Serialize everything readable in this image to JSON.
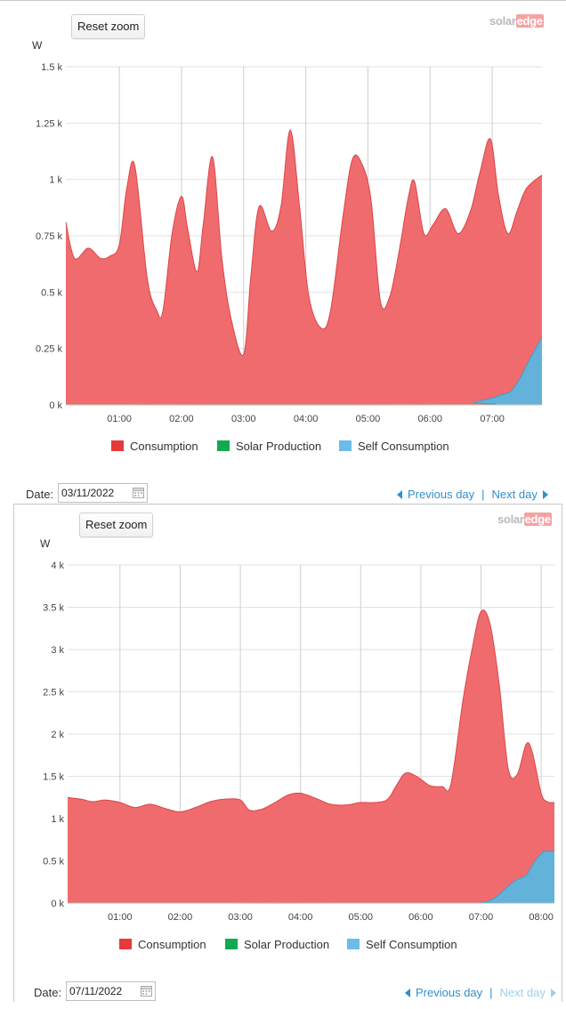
{
  "colors": {
    "consumption": "#f06b6d",
    "consumption_line": "#d9474a",
    "solar": "#17a84c",
    "self": "#5bb6e0",
    "legend_consumption": "#e83a3a",
    "legend_solar": "#13a94f",
    "legend_self": "#6bbce8",
    "grid": "#e2e2e2",
    "link": "#2f8fcd"
  },
  "logo": {
    "part1": "solar",
    "part2": "edge"
  },
  "chart_data": [
    {
      "type": "area",
      "ylabel": "W",
      "ylim": [
        0,
        1500
      ],
      "yticks": [
        0,
        250,
        500,
        750,
        1000,
        1250,
        1500
      ],
      "ytick_labels": [
        "0 k",
        "0.25 k",
        "0.5 k",
        "0.75 k",
        "1 k",
        "1.25 k",
        "1.5 k"
      ],
      "xlim": [
        0.14,
        7.8
      ],
      "xticks": [
        1,
        2,
        3,
        4,
        5,
        6,
        7
      ],
      "xtick_labels": [
        "01:00",
        "02:00",
        "03:00",
        "04:00",
        "05:00",
        "06:00",
        "07:00"
      ],
      "grid": true,
      "legend_position": "bottom",
      "series": [
        {
          "name": "Consumption",
          "x": [
            0.14,
            0.28,
            0.5,
            0.7,
            0.85,
            1.0,
            1.12,
            1.25,
            1.45,
            1.6,
            1.7,
            1.85,
            2.0,
            2.1,
            2.25,
            2.35,
            2.5,
            2.65,
            2.8,
            3.0,
            3.12,
            3.25,
            3.45,
            3.6,
            3.75,
            3.9,
            4.05,
            4.25,
            4.4,
            4.6,
            4.75,
            4.9,
            5.05,
            5.2,
            5.35,
            5.5,
            5.65,
            5.75,
            5.9,
            6.05,
            6.25,
            6.45,
            6.65,
            6.8,
            6.97,
            7.1,
            7.25,
            7.4,
            7.55,
            7.8
          ],
          "values": [
            810,
            650,
            695,
            650,
            660,
            710,
            960,
            1060,
            560,
            420,
            415,
            760,
            925,
            780,
            590,
            800,
            1100,
            650,
            380,
            225,
            580,
            880,
            770,
            880,
            1220,
            880,
            480,
            340,
            420,
            840,
            1090,
            1070,
            910,
            460,
            480,
            680,
            920,
            990,
            760,
            800,
            870,
            760,
            860,
            1030,
            1180,
            930,
            760,
            860,
            960,
            1020
          ]
        },
        {
          "name": "Solar Production",
          "x": [
            0.14,
            7.8
          ],
          "values": [
            0,
            0
          ]
        },
        {
          "name": "Self Consumption",
          "x": [
            0.14,
            6.55,
            6.7,
            6.85,
            7.0,
            7.15,
            7.3,
            7.45,
            7.6,
            7.8
          ],
          "values": [
            0,
            0,
            10,
            20,
            30,
            45,
            60,
            120,
            200,
            300
          ]
        }
      ]
    },
    {
      "type": "area",
      "ylabel": "W",
      "ylim": [
        0,
        4000
      ],
      "yticks": [
        0,
        500,
        1000,
        1500,
        2000,
        2500,
        3000,
        3500,
        4000
      ],
      "ytick_labels": [
        "0 k",
        "0.5 k",
        "1 k",
        "1.5 k",
        "2 k",
        "2.5 k",
        "3 k",
        "3.5 k",
        "4 k"
      ],
      "xlim": [
        0.13,
        8.22
      ],
      "xticks": [
        1,
        2,
        3,
        4,
        5,
        6,
        7,
        8
      ],
      "xtick_labels": [
        "01:00",
        "02:00",
        "03:00",
        "04:00",
        "05:00",
        "06:00",
        "07:00",
        "08:00"
      ],
      "grid": true,
      "legend_position": "bottom",
      "series": [
        {
          "name": "Consumption",
          "x": [
            0.13,
            0.35,
            0.55,
            0.75,
            1.0,
            1.25,
            1.5,
            1.75,
            2.0,
            2.25,
            2.5,
            2.75,
            3.0,
            3.15,
            3.35,
            3.55,
            3.8,
            4.0,
            4.25,
            4.5,
            4.75,
            5.0,
            5.25,
            5.45,
            5.6,
            5.75,
            5.95,
            6.15,
            6.35,
            6.5,
            6.7,
            6.85,
            7.0,
            7.15,
            7.3,
            7.45,
            7.6,
            7.75,
            7.85,
            8.0,
            8.1,
            8.22
          ],
          "values": [
            1250,
            1230,
            1200,
            1220,
            1190,
            1130,
            1170,
            1120,
            1080,
            1130,
            1200,
            1230,
            1220,
            1100,
            1110,
            1180,
            1280,
            1300,
            1240,
            1170,
            1160,
            1190,
            1190,
            1230,
            1400,
            1540,
            1490,
            1390,
            1380,
            1410,
            2400,
            3000,
            3450,
            3300,
            2600,
            1600,
            1520,
            1880,
            1790,
            1300,
            1200,
            1190
          ]
        },
        {
          "name": "Solar Production",
          "x": [
            0.13,
            8.22
          ],
          "values": [
            0,
            0
          ]
        },
        {
          "name": "Self Consumption",
          "x": [
            0.13,
            6.9,
            7.0,
            7.15,
            7.3,
            7.45,
            7.6,
            7.75,
            7.9,
            8.05,
            8.22
          ],
          "values": [
            0,
            0,
            10,
            30,
            100,
            200,
            280,
            330,
            500,
            610,
            610
          ]
        }
      ]
    }
  ],
  "panels": [
    {
      "reset_label": "Reset zoom"
    },
    {
      "reset_label": "Reset zoom",
      "date_label": "Date:",
      "date_value": "07/11/2022",
      "prev_label": "Previous day",
      "sep": "|",
      "next_label": "Next day"
    }
  ],
  "date_row_1": {
    "date_label": "Date:",
    "date_value": "03/11/2022",
    "prev_label": "Previous day",
    "sep": "|",
    "next_label": "Next day"
  }
}
